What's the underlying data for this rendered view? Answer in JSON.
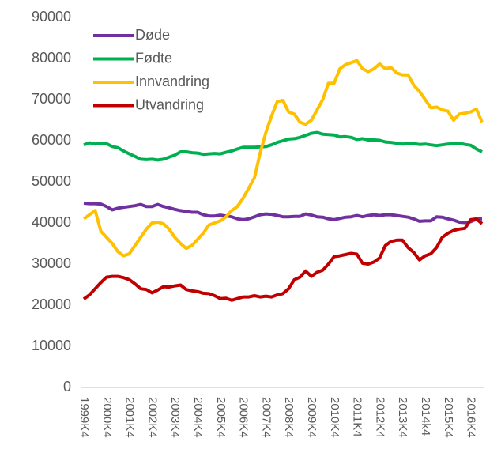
{
  "chart_data": {
    "type": "line",
    "categories": [
      "1999K4",
      null,
      null,
      null,
      "2000K4",
      null,
      null,
      null,
      "2001K4",
      null,
      null,
      null,
      "2002K4",
      null,
      null,
      null,
      "2003K4",
      null,
      null,
      null,
      "2004K4",
      null,
      null,
      null,
      "2005K4",
      null,
      null,
      null,
      "2006K4",
      null,
      null,
      null,
      "2007K4",
      null,
      null,
      null,
      "2008K4",
      null,
      null,
      null,
      "2009K4",
      null,
      null,
      null,
      "2010K4",
      null,
      null,
      null,
      "2011K4",
      null,
      null,
      null,
      "2012K4",
      null,
      null,
      null,
      "2013K4",
      null,
      null,
      null,
      "2014k4",
      null,
      null,
      null,
      "2015K4",
      null,
      null,
      null,
      "2016K4",
      null,
      null
    ],
    "series": [
      {
        "name": "Døde",
        "color": "#7030a0",
        "values": [
          44800,
          44700,
          44700,
          44600,
          44000,
          43200,
          43600,
          43800,
          44000,
          44200,
          44500,
          44000,
          44000,
          44500,
          44000,
          43700,
          43300,
          43000,
          42800,
          42600,
          42600,
          42000,
          41700,
          41700,
          41900,
          41700,
          41500,
          41000,
          40800,
          41000,
          41500,
          42000,
          42200,
          42100,
          41800,
          41500,
          41500,
          41600,
          41600,
          42200,
          41900,
          41500,
          41400,
          41000,
          40800,
          41100,
          41400,
          41500,
          41800,
          41500,
          41800,
          42000,
          41800,
          42000,
          42000,
          41800,
          41600,
          41400,
          41000,
          40400,
          40500,
          40500,
          41500,
          41400,
          41000,
          40700,
          40200,
          40100,
          40300,
          40900,
          41000
        ]
      },
      {
        "name": "Fødte",
        "color": "#00b050",
        "values": [
          59000,
          59500,
          59200,
          59400,
          59300,
          58600,
          58300,
          57500,
          56800,
          56200,
          55500,
          55400,
          55500,
          55300,
          55500,
          56000,
          56500,
          57300,
          57300,
          57100,
          57000,
          56700,
          56800,
          56900,
          56800,
          57200,
          57500,
          58000,
          58400,
          58400,
          58400,
          58500,
          58600,
          59000,
          59600,
          60000,
          60400,
          60500,
          60800,
          61300,
          61800,
          62000,
          61600,
          61500,
          61400,
          60900,
          61000,
          60800,
          60300,
          60500,
          60200,
          60200,
          60100,
          59700,
          59600,
          59400,
          59200,
          59300,
          59300,
          59100,
          59200,
          59000,
          58800,
          59000,
          59200,
          59300,
          59400,
          59100,
          58900,
          58000,
          57300
        ]
      },
      {
        "name": "Innvandring",
        "color": "#ffc000",
        "values": [
          41000,
          42000,
          43000,
          38000,
          36500,
          35000,
          33000,
          32000,
          32500,
          34500,
          36500,
          38500,
          40000,
          40200,
          39800,
          38500,
          36500,
          35000,
          33800,
          34500,
          36000,
          37500,
          39500,
          40000,
          40500,
          41500,
          43000,
          44000,
          46000,
          48500,
          51000,
          57000,
          62000,
          66000,
          69500,
          69800,
          67000,
          66500,
          64500,
          64000,
          65000,
          67500,
          70000,
          74000,
          74000,
          77500,
          78500,
          79000,
          79500,
          77500,
          76800,
          77500,
          78700,
          77500,
          77800,
          76500,
          76000,
          76000,
          73500,
          72000,
          70000,
          68000,
          68200,
          67500,
          67200,
          65000,
          66500,
          66700,
          67000,
          67700,
          64500
        ]
      },
      {
        "name": "Utvandring",
        "color": "#c00000",
        "values": [
          21500,
          22500,
          24000,
          25500,
          26800,
          27000,
          27000,
          26700,
          26200,
          25200,
          24000,
          23800,
          23000,
          23700,
          24500,
          24400,
          24700,
          24900,
          23800,
          23500,
          23300,
          22900,
          22800,
          22300,
          21600,
          21700,
          21200,
          21600,
          22000,
          22000,
          22300,
          22000,
          22200,
          22000,
          22500,
          22800,
          24000,
          26200,
          26800,
          28300,
          27000,
          28000,
          28500,
          30000,
          31800,
          32000,
          32300,
          32600,
          32400,
          30200,
          30000,
          30500,
          31500,
          34500,
          35500,
          35800,
          35800,
          34000,
          32800,
          31000,
          32000,
          32500,
          34000,
          36500,
          37500,
          38200,
          38500,
          38700,
          40800,
          41000,
          39800
        ]
      }
    ],
    "ylim": [
      0,
      90000
    ],
    "yticks": [
      0,
      10000,
      20000,
      30000,
      40000,
      50000,
      60000,
      70000,
      80000,
      90000
    ],
    "grid": false,
    "legend": "top-left"
  }
}
